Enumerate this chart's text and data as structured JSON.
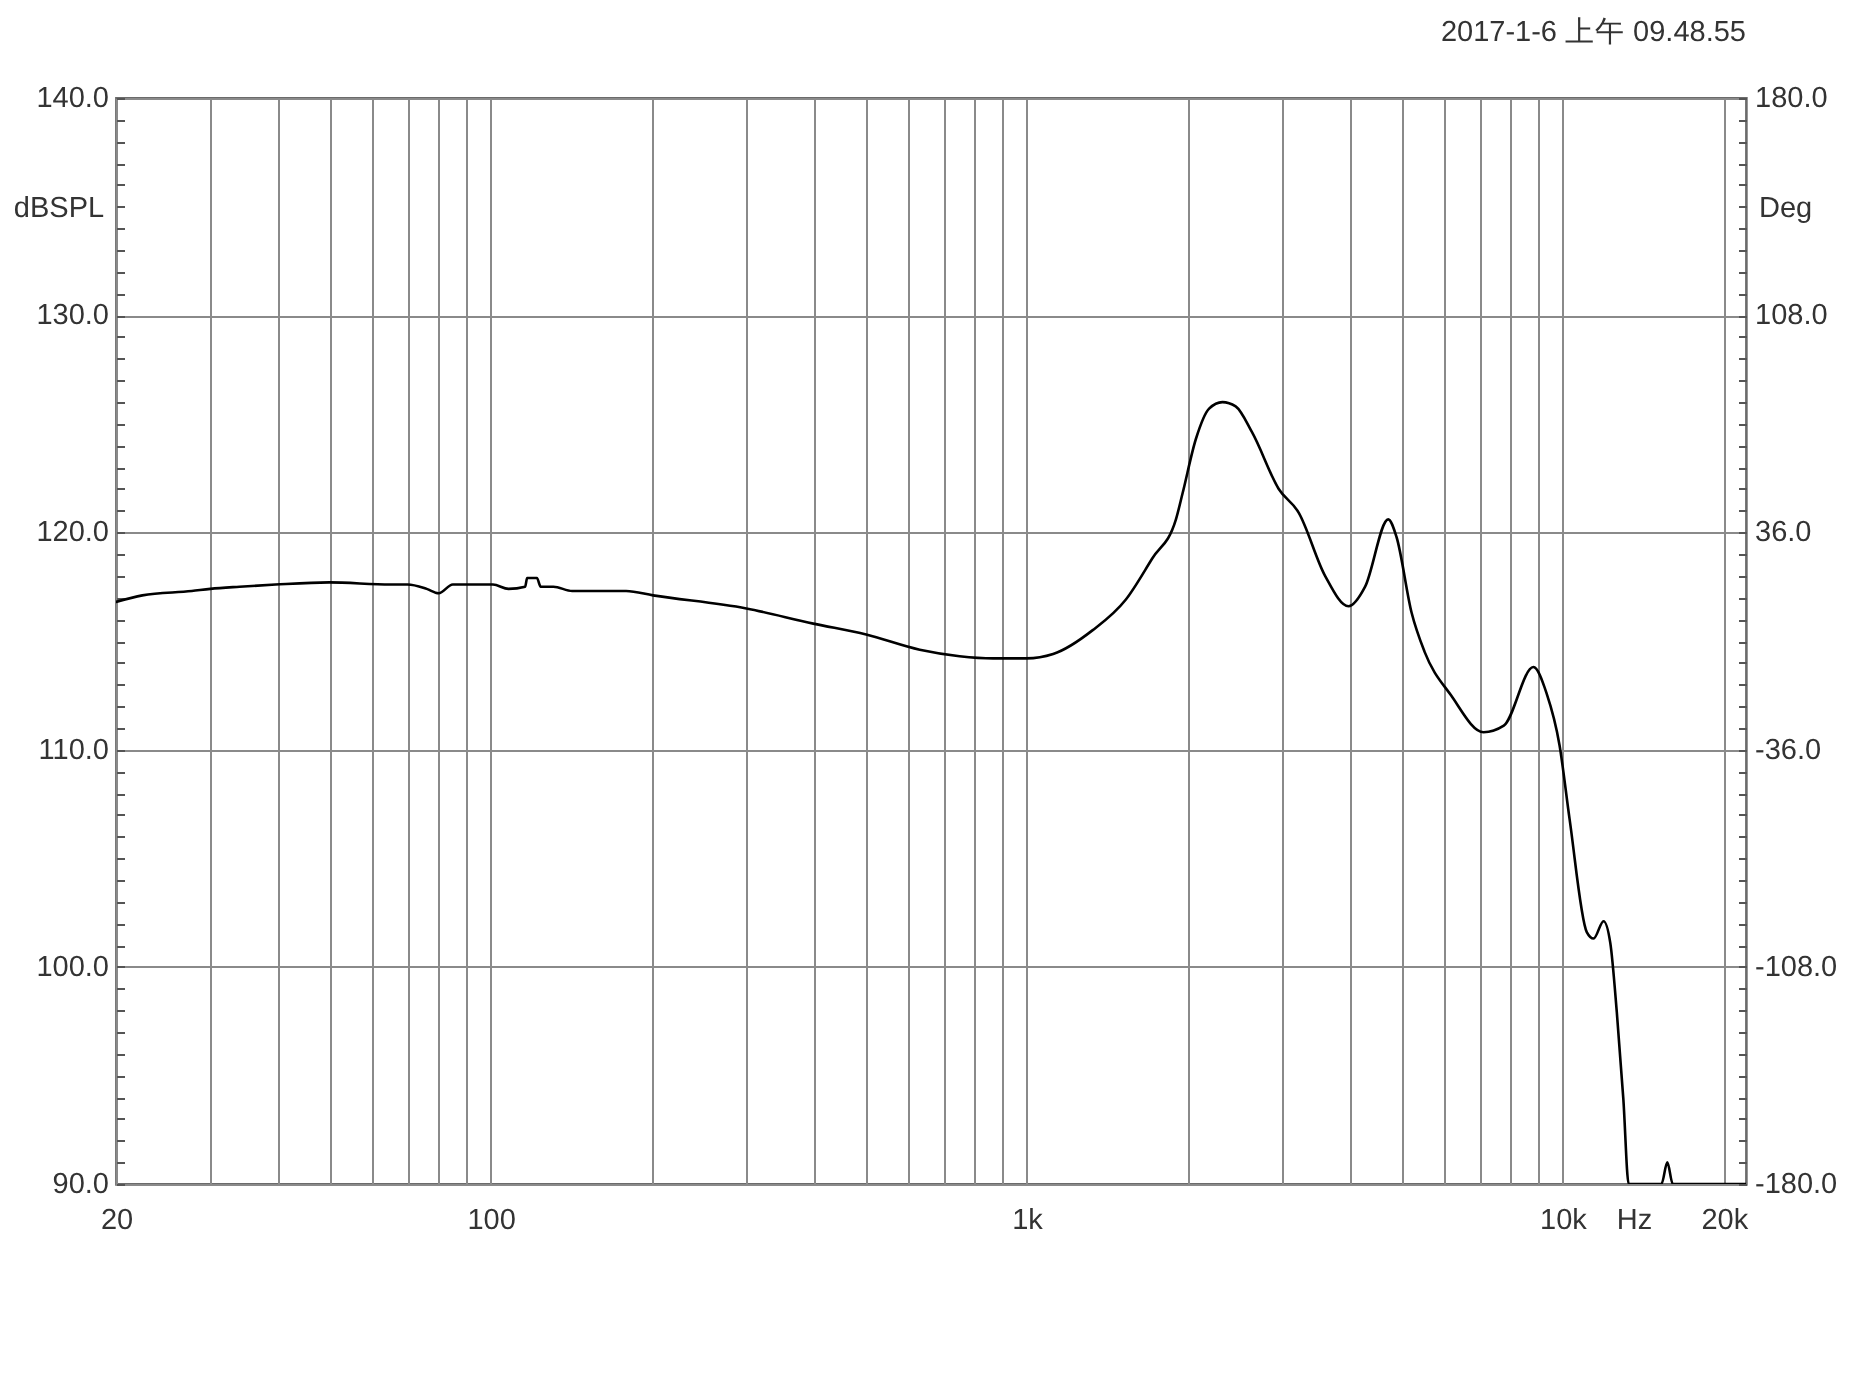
{
  "chart_data": {
    "type": "line",
    "annotations": [
      "2017-1-6 上午 09.48.55"
    ],
    "xlabel": "Hz",
    "ylabel": "dBSPL",
    "y2label": "Deg",
    "log": "x",
    "grid": true,
    "x": [
      20,
      22.4,
      27.7,
      30,
      34,
      39.7,
      50,
      65,
      70,
      76,
      80,
      85,
      89,
      101,
      108,
      116,
      117,
      122,
      124,
      131,
      142,
      160,
      179,
      201,
      300,
      400,
      502,
      632,
      750,
      866,
      1000,
      1121,
      1329,
      1531,
      1716,
      1900,
      1955,
      2070,
      2191,
      2320,
      2456,
      2636,
      2955,
      3221,
      3606,
      3988,
      4283,
      4730,
      4900,
      5230,
      5530,
      6195,
      7124,
      7771,
      8825,
      9337,
      9874,
      10310,
      11100,
      11430,
      11930,
      12280,
      12630,
      12990,
      13290,
      15300,
      15690,
      16060,
      22000
    ],
    "series": [
      {
        "color": "#000000",
        "values": [
          116.8,
          117.1,
          117.3,
          117.4,
          117.5,
          117.6,
          117.7,
          117.6,
          117.6,
          117.4,
          117.2,
          117.6,
          117.6,
          117.6,
          117.4,
          117.5,
          117.9,
          117.9,
          117.5,
          117.5,
          117.3,
          117.3,
          117.3,
          117.1,
          116.5,
          115.8,
          115.3,
          114.6,
          114.3,
          114.2,
          114.2,
          114.4,
          115.5,
          116.9,
          118.8,
          120.6,
          121.8,
          124.3,
          125.7,
          126.0,
          125.8,
          124.6,
          122.0,
          120.9,
          118.0,
          116.6,
          117.5,
          120.6,
          119.8,
          116.3,
          114.5,
          112.5,
          110.8,
          111.1,
          113.8,
          112.6,
          110.2,
          106.8,
          101.6,
          101.3,
          102.1,
          101.1,
          97.9,
          93.9,
          90.0,
          90.0,
          91.0,
          90.0,
          90.0
        ]
      }
    ],
    "xlim": [
      20,
      22000
    ],
    "xticks": [
      20,
      {
        "value": 30,
        "label": null
      },
      {
        "value": 40,
        "label": null
      },
      {
        "value": 50,
        "label": null
      },
      {
        "value": 60,
        "label": null
      },
      {
        "value": 70,
        "label": null
      },
      {
        "value": 80,
        "label": null
      },
      {
        "value": 90,
        "label": null
      },
      100,
      {
        "value": 200,
        "label": null
      },
      {
        "value": 300,
        "label": null
      },
      {
        "value": 400,
        "label": null
      },
      {
        "value": 500,
        "label": null
      },
      {
        "value": 600,
        "label": null
      },
      {
        "value": 700,
        "label": null
      },
      {
        "value": 800,
        "label": null
      },
      {
        "value": 900,
        "label": null
      },
      {
        "value": 1000,
        "label": "1k"
      },
      {
        "value": 2000,
        "label": null
      },
      {
        "value": 3000,
        "label": null
      },
      {
        "value": 4000,
        "label": null
      },
      {
        "value": 5000,
        "label": null
      },
      {
        "value": 6000,
        "label": null
      },
      {
        "value": 7000,
        "label": null
      },
      {
        "value": 8000,
        "label": null
      },
      {
        "value": 9000,
        "label": null
      },
      {
        "value": 10000,
        "label": "10k"
      },
      {
        "value": 20000,
        "label": "20k"
      }
    ],
    "ylim": [
      90,
      140
    ],
    "yticks": [
      {
        "value": 90,
        "label": "90.0"
      },
      {
        "value": 91,
        "label": null
      },
      {
        "value": 92,
        "label": null
      },
      {
        "value": 93,
        "label": null
      },
      {
        "value": 94,
        "label": null
      },
      {
        "value": 95,
        "label": null
      },
      {
        "value": 96,
        "label": null
      },
      {
        "value": 97,
        "label": null
      },
      {
        "value": 98,
        "label": null
      },
      {
        "value": 99,
        "label": null
      },
      {
        "value": 100,
        "label": "100.0"
      },
      {
        "value": 101,
        "label": null
      },
      {
        "value": 102,
        "label": null
      },
      {
        "value": 103,
        "label": null
      },
      {
        "value": 104,
        "label": null
      },
      {
        "value": 105,
        "label": null
      },
      {
        "value": 106,
        "label": null
      },
      {
        "value": 107,
        "label": null
      },
      {
        "value": 108,
        "label": null
      },
      {
        "value": 109,
        "label": null
      },
      {
        "value": 110,
        "label": "110.0"
      },
      {
        "value": 111,
        "label": null
      },
      {
        "value": 112,
        "label": null
      },
      {
        "value": 113,
        "label": null
      },
      {
        "value": 114,
        "label": null
      },
      {
        "value": 115,
        "label": null
      },
      {
        "value": 116,
        "label": null
      },
      {
        "value": 117,
        "label": null
      },
      {
        "value": 118,
        "label": null
      },
      {
        "value": 119,
        "label": null
      },
      {
        "value": 120,
        "label": "120.0"
      },
      {
        "value": 121,
        "label": null
      },
      {
        "value": 122,
        "label": null
      },
      {
        "value": 123,
        "label": null
      },
      {
        "value": 124,
        "label": null
      },
      {
        "value": 125,
        "label": null
      },
      {
        "value": 126,
        "label": null
      },
      {
        "value": 127,
        "label": null
      },
      {
        "value": 128,
        "label": null
      },
      {
        "value": 129,
        "label": null
      },
      {
        "value": 130,
        "label": "130.0"
      },
      {
        "value": 131,
        "label": null
      },
      {
        "value": 132,
        "label": null
      },
      {
        "value": 133,
        "label": null
      },
      {
        "value": 134,
        "label": null
      },
      {
        "value": 135,
        "label": null
      },
      {
        "value": 136,
        "label": null
      },
      {
        "value": 137,
        "label": null
      },
      {
        "value": 138,
        "label": null
      },
      {
        "value": 139,
        "label": null
      },
      {
        "value": 140,
        "label": "140.0"
      }
    ],
    "y2lim": [
      -180,
      180
    ],
    "y2ticks": [
      {
        "value": -180,
        "label": "-180.0"
      },
      {
        "value": -172.8,
        "label": null
      },
      {
        "value": -165.6,
        "label": null
      },
      {
        "value": -158.4,
        "label": null
      },
      {
        "value": -151.2,
        "label": null
      },
      {
        "value": -144,
        "label": null
      },
      {
        "value": -136.8,
        "label": null
      },
      {
        "value": -129.6,
        "label": null
      },
      {
        "value": -122.4,
        "label": null
      },
      {
        "value": -115.2,
        "label": null
      },
      {
        "value": -108,
        "label": "-108.0"
      },
      {
        "value": -100.8,
        "label": null
      },
      {
        "value": -93.6,
        "label": null
      },
      {
        "value": -86.4,
        "label": null
      },
      {
        "value": -79.2,
        "label": null
      },
      {
        "value": -72,
        "label": null
      },
      {
        "value": -64.8,
        "label": null
      },
      {
        "value": -57.6,
        "label": null
      },
      {
        "value": -50.4,
        "label": null
      },
      {
        "value": -43.2,
        "label": null
      },
      {
        "value": -36,
        "label": "-36.0"
      },
      {
        "value": -28.8,
        "label": null
      },
      {
        "value": -21.6,
        "label": null
      },
      {
        "value": -14.4,
        "label": null
      },
      {
        "value": -7.2,
        "label": null
      },
      {
        "value": 0,
        "label": null
      },
      {
        "value": 7.2,
        "label": null
      },
      {
        "value": 14.4,
        "label": null
      },
      {
        "value": 21.6,
        "label": null
      },
      {
        "value": 28.8,
        "label": null
      },
      {
        "value": 36,
        "label": "36.0"
      },
      {
        "value": 43.2,
        "label": null
      },
      {
        "value": 50.4,
        "label": null
      },
      {
        "value": 57.6,
        "label": null
      },
      {
        "value": 64.8,
        "label": null
      },
      {
        "value": 72,
        "label": null
      },
      {
        "value": 79.2,
        "label": null
      },
      {
        "value": 86.4,
        "label": null
      },
      {
        "value": 93.6,
        "label": null
      },
      {
        "value": 100.8,
        "label": null
      },
      {
        "value": 108,
        "label": "108.0"
      },
      {
        "value": 115.2,
        "label": null
      },
      {
        "value": 122.4,
        "label": null
      },
      {
        "value": 129.6,
        "label": null
      },
      {
        "value": 136.8,
        "label": null
      },
      {
        "value": 144,
        "label": null
      },
      {
        "value": 151.2,
        "label": null
      },
      {
        "value": 158.4,
        "label": null
      },
      {
        "value": 165.6,
        "label": null
      },
      {
        "value": 172.8,
        "label": null
      },
      {
        "value": 180,
        "label": "180.0"
      }
    ]
  }
}
